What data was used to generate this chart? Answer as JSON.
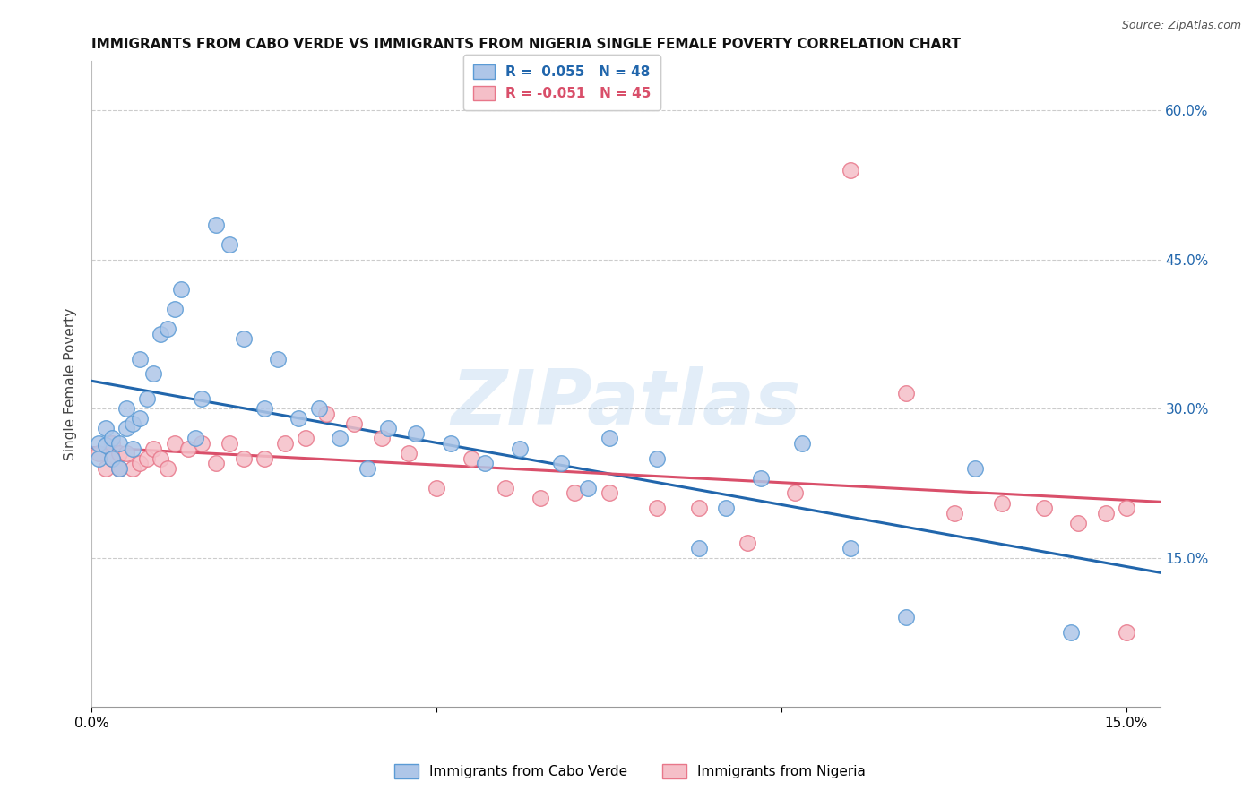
{
  "title": "IMMIGRANTS FROM CABO VERDE VS IMMIGRANTS FROM NIGERIA SINGLE FEMALE POVERTY CORRELATION CHART",
  "source": "Source: ZipAtlas.com",
  "ylabel": "Single Female Poverty",
  "legend_1": "R =  0.055   N = 48",
  "legend_2": "R = -0.051   N = 45",
  "legend_label_1": "Immigrants from Cabo Verde",
  "legend_label_2": "Immigrants from Nigeria",
  "blue_fill": "#aec6e8",
  "pink_fill": "#f5bfc8",
  "blue_edge": "#5b9bd5",
  "pink_edge": "#e8778a",
  "blue_line": "#2166ac",
  "pink_line": "#d94f6a",
  "cabo_verde_x": [
    0.001,
    0.001,
    0.002,
    0.002,
    0.003,
    0.003,
    0.004,
    0.004,
    0.005,
    0.005,
    0.006,
    0.006,
    0.007,
    0.007,
    0.008,
    0.009,
    0.01,
    0.011,
    0.012,
    0.013,
    0.015,
    0.016,
    0.018,
    0.02,
    0.022,
    0.025,
    0.027,
    0.03,
    0.033,
    0.036,
    0.04,
    0.043,
    0.047,
    0.052,
    0.057,
    0.062,
    0.068,
    0.072,
    0.075,
    0.082,
    0.088,
    0.092,
    0.097,
    0.103,
    0.11,
    0.118,
    0.128,
    0.142
  ],
  "cabo_verde_y": [
    0.265,
    0.25,
    0.28,
    0.263,
    0.27,
    0.25,
    0.265,
    0.24,
    0.28,
    0.3,
    0.285,
    0.26,
    0.35,
    0.29,
    0.31,
    0.335,
    0.375,
    0.38,
    0.4,
    0.42,
    0.27,
    0.31,
    0.485,
    0.465,
    0.37,
    0.3,
    0.35,
    0.29,
    0.3,
    0.27,
    0.24,
    0.28,
    0.275,
    0.265,
    0.245,
    0.26,
    0.245,
    0.22,
    0.27,
    0.25,
    0.16,
    0.2,
    0.23,
    0.265,
    0.16,
    0.09,
    0.24,
    0.075
  ],
  "nigeria_x": [
    0.001,
    0.002,
    0.003,
    0.003,
    0.004,
    0.004,
    0.005,
    0.006,
    0.007,
    0.008,
    0.009,
    0.01,
    0.011,
    0.012,
    0.014,
    0.016,
    0.018,
    0.02,
    0.022,
    0.025,
    0.028,
    0.031,
    0.034,
    0.038,
    0.042,
    0.046,
    0.05,
    0.055,
    0.06,
    0.065,
    0.07,
    0.075,
    0.082,
    0.088,
    0.095,
    0.102,
    0.11,
    0.118,
    0.125,
    0.132,
    0.138,
    0.143,
    0.147,
    0.15,
    0.15
  ],
  "nigeria_y": [
    0.255,
    0.24,
    0.265,
    0.25,
    0.255,
    0.24,
    0.255,
    0.24,
    0.245,
    0.25,
    0.26,
    0.25,
    0.24,
    0.265,
    0.26,
    0.265,
    0.245,
    0.265,
    0.25,
    0.25,
    0.265,
    0.27,
    0.295,
    0.285,
    0.27,
    0.255,
    0.22,
    0.25,
    0.22,
    0.21,
    0.215,
    0.215,
    0.2,
    0.2,
    0.165,
    0.215,
    0.54,
    0.315,
    0.195,
    0.205,
    0.2,
    0.185,
    0.195,
    0.2,
    0.075
  ],
  "xlim": [
    0.0,
    0.155
  ],
  "ylim": [
    0.0,
    0.65
  ],
  "yticks": [
    0.15,
    0.3,
    0.45,
    0.6
  ],
  "ytick_labels": [
    "15.0%",
    "30.0%",
    "45.0%",
    "60.0%"
  ],
  "xticks": [
    0.0,
    0.05,
    0.1,
    0.15
  ],
  "xtick_labels": [
    "0.0%",
    "",
    "",
    "15.0%"
  ],
  "watermark": "ZIPatlas",
  "background_color": "#ffffff",
  "grid_color": "#cccccc"
}
